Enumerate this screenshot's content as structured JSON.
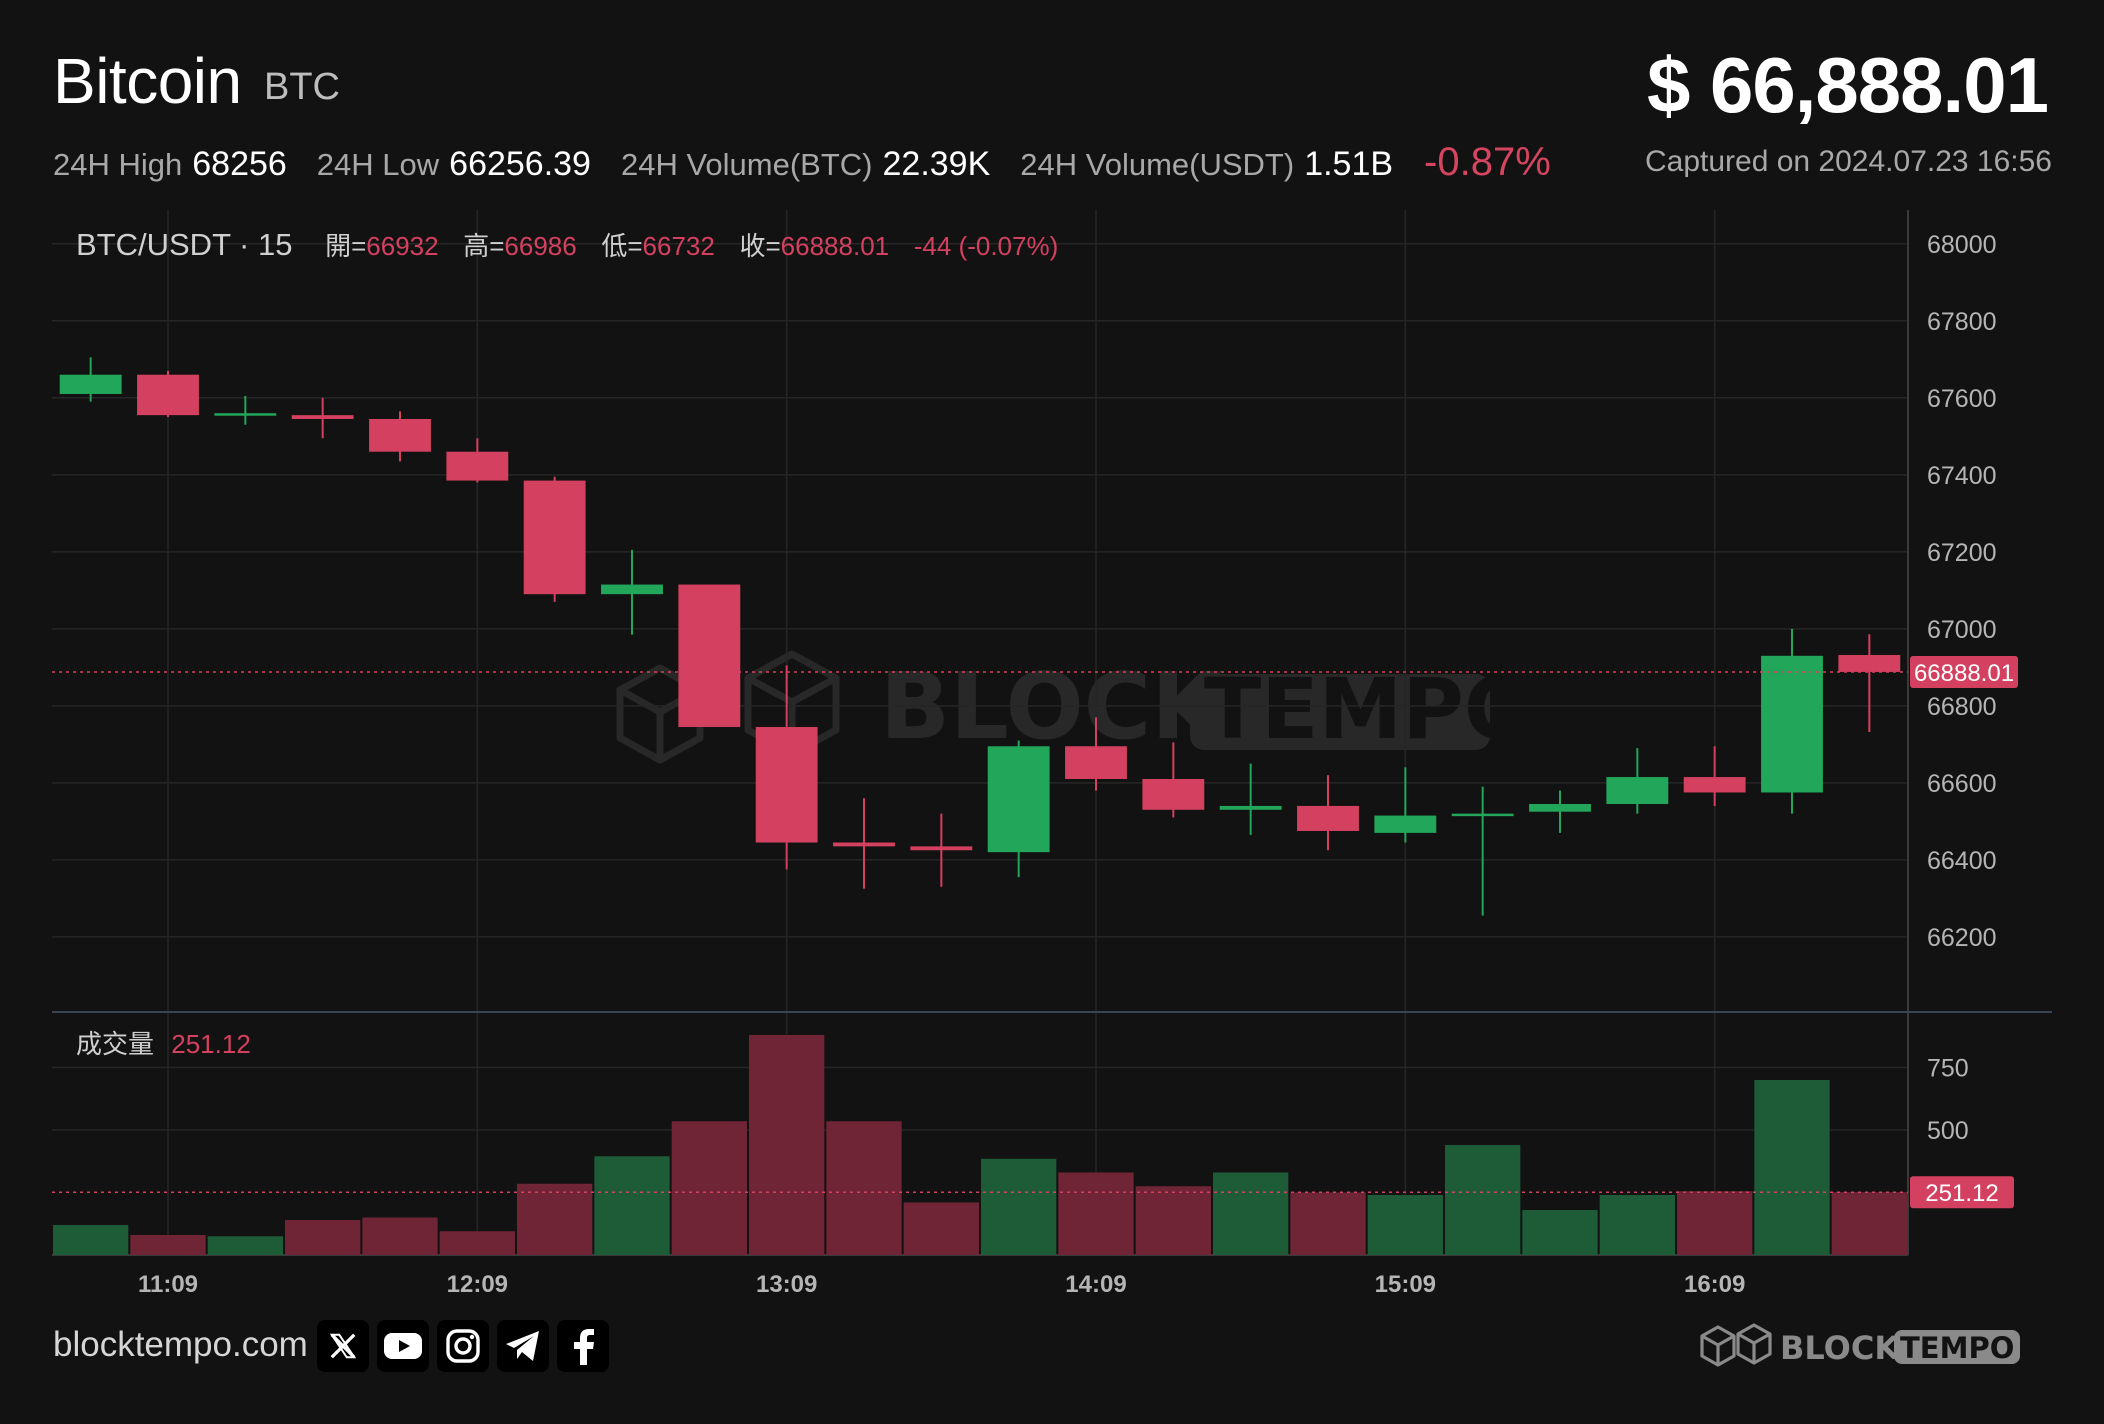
{
  "header": {
    "name": "Bitcoin",
    "symbol": "BTC",
    "price": "$ 66,888.01",
    "captured": "Captured on 2024.07.23 16:56"
  },
  "stats": {
    "high_label": "24H High",
    "high_value": "68256",
    "low_label": "24H Low",
    "low_value": "66256.39",
    "vol_btc_label": "24H Volume(BTC)",
    "vol_btc_value": "22.39K",
    "vol_usdt_label": "24H Volume(USDT)",
    "vol_usdt_value": "1.51B",
    "change": "-0.87%"
  },
  "legend": {
    "pair": "BTC/USDT · 15",
    "open_label": "開=",
    "open": "66932",
    "high_label": "高=",
    "high": "66986",
    "low_label": "低=",
    "low": "66732",
    "close_label": "收=",
    "close": "66888.01",
    "change": "-44 (-0.07%)",
    "volume_label": "成交量",
    "volume": "251.12"
  },
  "footer": {
    "site": "blocktempo.com",
    "brand_left": "BLOCK",
    "brand_right": "TEMPO"
  },
  "colors": {
    "up": "#22a65a",
    "down": "#d4405f",
    "bg": "#121212"
  },
  "icons": [
    "x-icon",
    "youtube-icon",
    "instagram-icon",
    "telegram-icon",
    "facebook-icon"
  ],
  "chart_data": {
    "type": "candlestick",
    "x_ticks": [
      "11:09",
      "12:09",
      "13:09",
      "14:09",
      "15:09",
      "16:09"
    ],
    "price_ticks": [
      68000,
      67800,
      67600,
      67400,
      67200,
      67000,
      66800,
      66600,
      66400,
      66200
    ],
    "ylim": [
      66010,
      68080
    ],
    "current_price": "66888.01",
    "current_price_value": 66888.01,
    "candles": [
      {
        "o": 67610,
        "h": 67705,
        "l": 67590,
        "c": 67660
      },
      {
        "o": 67660,
        "h": 67670,
        "l": 67550,
        "c": 67555
      },
      {
        "o": 67555,
        "h": 67605,
        "l": 67530,
        "c": 67560
      },
      {
        "o": 67555,
        "h": 67600,
        "l": 67495,
        "c": 67545
      },
      {
        "o": 67545,
        "h": 67565,
        "l": 67435,
        "c": 67460
      },
      {
        "o": 67460,
        "h": 67495,
        "l": 67380,
        "c": 67385
      },
      {
        "o": 67385,
        "h": 67395,
        "l": 67070,
        "c": 67090
      },
      {
        "o": 67090,
        "h": 67205,
        "l": 66985,
        "c": 67115
      },
      {
        "o": 67115,
        "h": 67115,
        "l": 66745,
        "c": 66745
      },
      {
        "o": 66745,
        "h": 66905,
        "l": 66375,
        "c": 66445
      },
      {
        "o": 66445,
        "h": 66560,
        "l": 66325,
        "c": 66435
      },
      {
        "o": 66435,
        "h": 66520,
        "l": 66330,
        "c": 66425
      },
      {
        "o": 66420,
        "h": 66710,
        "l": 66355,
        "c": 66695
      },
      {
        "o": 66695,
        "h": 66770,
        "l": 66580,
        "c": 66610
      },
      {
        "o": 66610,
        "h": 66705,
        "l": 66510,
        "c": 66530
      },
      {
        "o": 66530,
        "h": 66650,
        "l": 66465,
        "c": 66540
      },
      {
        "o": 66540,
        "h": 66620,
        "l": 66425,
        "c": 66475
      },
      {
        "o": 66470,
        "h": 66640,
        "l": 66445,
        "c": 66515
      },
      {
        "o": 66515,
        "h": 66590,
        "l": 66255,
        "c": 66520
      },
      {
        "o": 66525,
        "h": 66580,
        "l": 66470,
        "c": 66545
      },
      {
        "o": 66545,
        "h": 66690,
        "l": 66520,
        "c": 66615
      },
      {
        "o": 66615,
        "h": 66695,
        "l": 66540,
        "c": 66575
      },
      {
        "o": 66575,
        "h": 67000,
        "l": 66520,
        "c": 66930
      },
      {
        "o": 66932,
        "h": 66986,
        "l": 66732,
        "c": 66888.01
      }
    ],
    "volume_ticks": [
      750,
      500
    ],
    "volume_ylim": [
      0,
      880
    ],
    "volume": [
      120,
      80,
      75,
      140,
      150,
      95,
      285,
      395,
      535,
      880,
      535,
      210,
      385,
      330,
      275,
      330,
      250,
      240,
      440,
      180,
      240,
      255,
      700,
      251.12
    ]
  }
}
